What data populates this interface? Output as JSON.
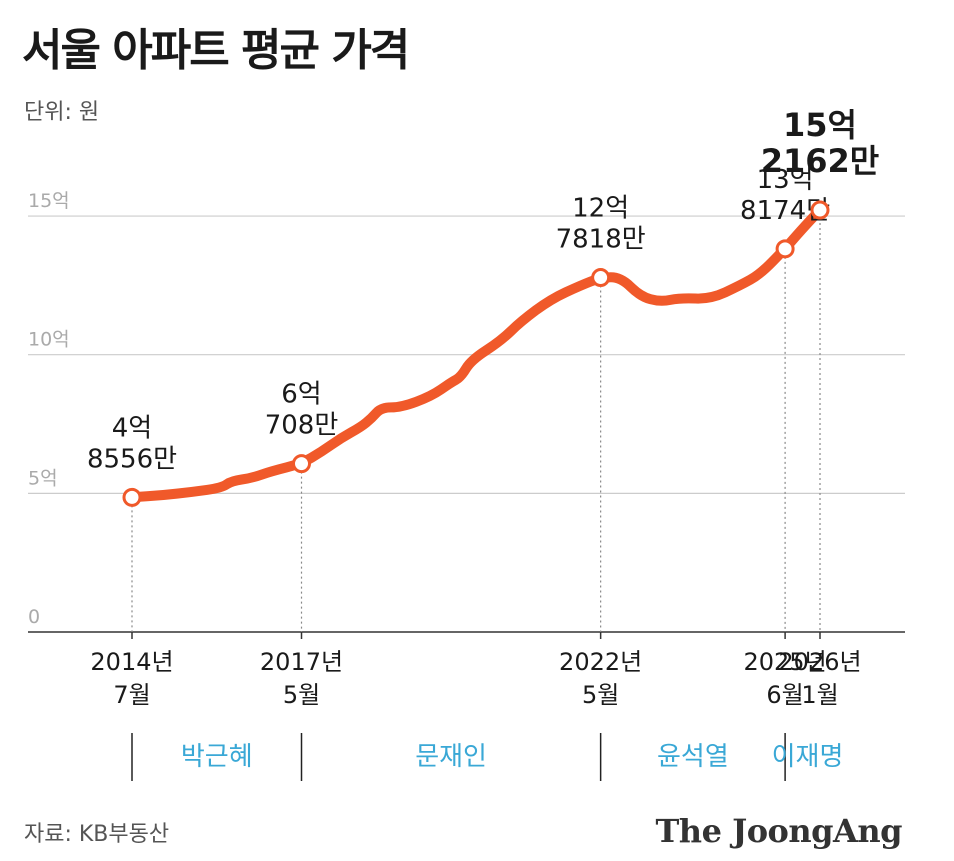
{
  "title": "서울 아파트 평균 가격",
  "unit": "단위: 원",
  "source": "자료: KB부동산",
  "logo": "The JoongAng",
  "colors": {
    "line": "#f0592a",
    "grid": "#cccccc",
    "era": "#3aa8d6"
  },
  "chart_data": {
    "type": "line",
    "title": "서울 아파트 평균 가격",
    "ylabel": "단위: 원",
    "ylim": [
      0,
      15.5
    ],
    "y_ticks": [
      {
        "value": 0,
        "label": "0"
      },
      {
        "value": 5,
        "label": "5억"
      },
      {
        "value": 10,
        "label": "10억"
      },
      {
        "value": 15,
        "label": "15억"
      }
    ],
    "xlim": [
      "2014-07",
      "2026-03"
    ],
    "grid": true,
    "series": [
      {
        "values_unit": "억 원",
        "points": [
          [
            "2014-07",
            4.86
          ],
          [
            "2015-01",
            4.93
          ],
          [
            "2015-07",
            5.05
          ],
          [
            "2016-01",
            5.2
          ],
          [
            "2016-03",
            5.45
          ],
          [
            "2016-07",
            5.55
          ],
          [
            "2016-11",
            5.8
          ],
          [
            "2017-05",
            6.07
          ],
          [
            "2017-09",
            6.5
          ],
          [
            "2018-01",
            7.0
          ],
          [
            "2018-05",
            7.4
          ],
          [
            "2018-07",
            7.7
          ],
          [
            "2018-09",
            8.1
          ],
          [
            "2019-01",
            8.1
          ],
          [
            "2019-07",
            8.5
          ],
          [
            "2019-11",
            9.0
          ],
          [
            "2020-01",
            9.2
          ],
          [
            "2020-03",
            9.8
          ],
          [
            "2020-09",
            10.5
          ],
          [
            "2021-01",
            11.2
          ],
          [
            "2021-07",
            12.0
          ],
          [
            "2022-01",
            12.5
          ],
          [
            "2022-05",
            12.78
          ],
          [
            "2022-09",
            12.8
          ],
          [
            "2023-01",
            12.1
          ],
          [
            "2023-05",
            11.9
          ],
          [
            "2023-09",
            12.05
          ],
          [
            "2024-03",
            12.0
          ],
          [
            "2024-09",
            12.5
          ],
          [
            "2025-01",
            12.9
          ],
          [
            "2025-06",
            13.82
          ],
          [
            "2025-09",
            14.45
          ],
          [
            "2026-01",
            15.22
          ]
        ]
      }
    ],
    "markers": [
      {
        "date": "2014-07",
        "value": 4.8556,
        "label_line1": "4억",
        "label_line2": "8556만",
        "tick_line1": "2014년",
        "tick_line2": "7월"
      },
      {
        "date": "2017-05",
        "value": 6.0708,
        "label_line1": "6억",
        "label_line2": "708만",
        "tick_line1": "2017년",
        "tick_line2": "5월"
      },
      {
        "date": "2022-05",
        "value": 12.7818,
        "label_line1": "12억",
        "label_line2": "7818만",
        "tick_line1": "2022년",
        "tick_line2": "5월"
      },
      {
        "date": "2025-06",
        "value": 13.8174,
        "label_line1": "13억",
        "label_line2": "8174만",
        "tick_line1": "2025년",
        "tick_line2": "6월"
      },
      {
        "date": "2026-01",
        "value": 15.2162,
        "label_line1": "15억",
        "label_line2": "2162만",
        "tick_line1": "2026년",
        "tick_line2": "1월"
      }
    ],
    "eras": [
      {
        "name": "박근혜",
        "from": "2014-07",
        "to": "2017-05"
      },
      {
        "name": "문재인",
        "from": "2017-05",
        "to": "2022-05"
      },
      {
        "name": "윤석열",
        "from": "2022-05",
        "to": "2025-06"
      },
      {
        "name": "이재명",
        "from": "2025-06",
        "to": "2026-03"
      }
    ]
  }
}
